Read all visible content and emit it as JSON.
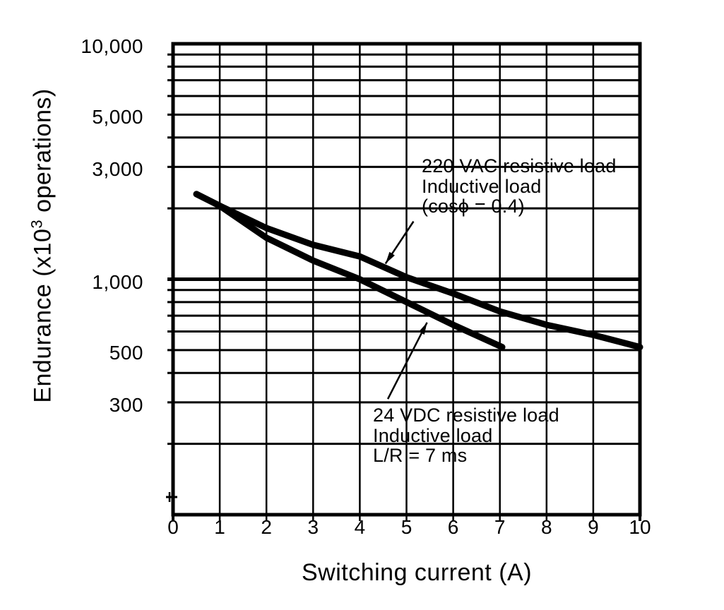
{
  "figure": {
    "background": "#ffffff",
    "ink_color": "#000000"
  },
  "chart_data": {
    "type": "line",
    "title": "",
    "xlabel": "Switching current (A)",
    "ylabel": "Endurance (x10³ operations)",
    "ylabel_parts": {
      "prefix": "Endurance (x10",
      "sup": "3",
      "suffix": " operations)"
    },
    "x_axis": {
      "min": 0,
      "max": 10,
      "ticks": [
        0,
        1,
        2,
        3,
        4,
        5,
        6,
        7,
        8,
        9,
        10
      ]
    },
    "y_axis": {
      "scale": "log",
      "min": 100,
      "max": 10000,
      "tick_labels": [
        {
          "value": 10000,
          "label": "10,000"
        },
        {
          "value": 5000,
          "label": "5,000"
        },
        {
          "value": 3000,
          "label": "3,000"
        },
        {
          "value": 1000,
          "label": "1,000"
        },
        {
          "value": 500,
          "label": "500"
        },
        {
          "value": 300,
          "label": "300"
        }
      ]
    },
    "grid": {
      "on": true,
      "x_lines": [
        1,
        2,
        3,
        4,
        5,
        6,
        7,
        8,
        9
      ],
      "y_lines": [
        200,
        300,
        400,
        500,
        600,
        700,
        800,
        900,
        1000,
        2000,
        3000,
        4000,
        5000,
        6000,
        7000,
        8000,
        9000
      ]
    },
    "series": [
      {
        "name": "220 VAC resistive load / Inductive load (cosϕ = 0.4)",
        "points": [
          [
            0.5,
            2300
          ],
          [
            1,
            2050
          ],
          [
            2,
            1650
          ],
          [
            3,
            1400
          ],
          [
            4,
            1250
          ],
          [
            5,
            1020
          ],
          [
            6,
            870
          ],
          [
            7,
            730
          ],
          [
            8,
            640
          ],
          [
            9,
            580
          ],
          [
            10,
            515
          ]
        ]
      },
      {
        "name": "24 VDC resistive load / Inductive load L/R = 7 ms",
        "points": [
          [
            0.5,
            2300
          ],
          [
            1,
            2050
          ],
          [
            2,
            1500
          ],
          [
            3,
            1200
          ],
          [
            4,
            1000
          ],
          [
            5,
            800
          ],
          [
            6,
            640
          ],
          [
            7.05,
            515
          ]
        ]
      }
    ],
    "annotations": [
      {
        "lines": [
          "220 VAC resistive load",
          "Inductive load",
          "(cosϕ = 0.4)"
        ],
        "leader": {
          "from": [
            5.15,
            1760
          ],
          "to": [
            4.55,
            1165
          ]
        }
      },
      {
        "lines": [
          "24 VDC resistive load",
          "Inductive load",
          "L/R = 7 ms"
        ],
        "leader": {
          "from": [
            4.6,
            310
          ],
          "to": [
            5.44,
            655
          ]
        }
      }
    ],
    "legend_position": "none"
  }
}
